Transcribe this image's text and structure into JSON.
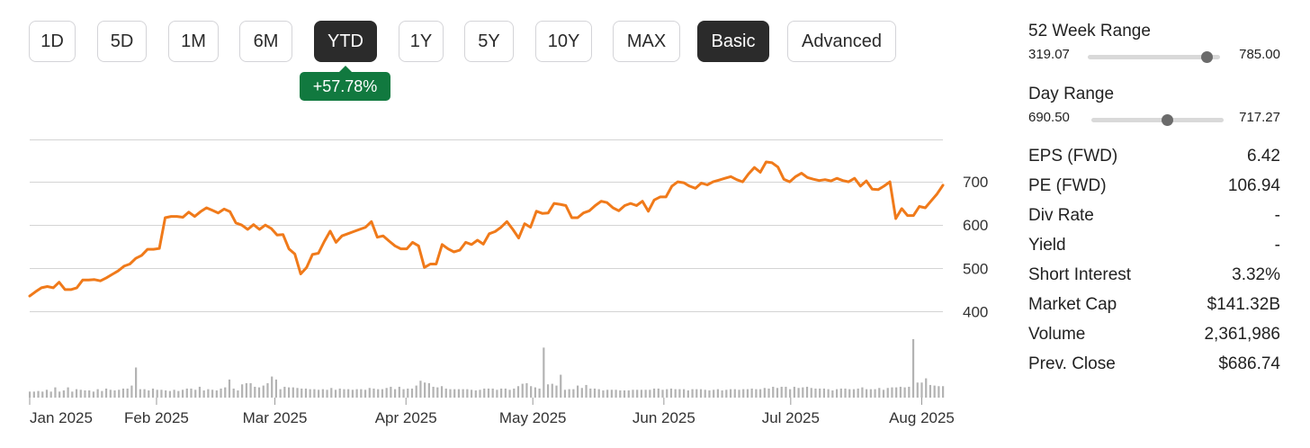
{
  "time_ranges": [
    {
      "label": "1D",
      "active": false
    },
    {
      "label": "5D",
      "active": false
    },
    {
      "label": "1M",
      "active": false
    },
    {
      "label": "6M",
      "active": false
    },
    {
      "label": "YTD",
      "active": true
    },
    {
      "label": "1Y",
      "active": false
    },
    {
      "label": "5Y",
      "active": false
    },
    {
      "label": "10Y",
      "active": false
    },
    {
      "label": "MAX",
      "active": false
    }
  ],
  "view_modes": [
    {
      "label": "Basic",
      "active": true
    },
    {
      "label": "Advanced",
      "active": false
    }
  ],
  "change_badge": "+57.78%",
  "colors": {
    "price_line": "#f07a1a",
    "badge": "#11793f",
    "active_button": "#2b2b2b",
    "volume_bar": "#b3b3b3",
    "grid": "#d4d4d4"
  },
  "stats": {
    "week52": {
      "title": "52 Week Range",
      "low": "319.07",
      "high": "785.00",
      "position": 0.9
    },
    "day": {
      "title": "Day Range",
      "low": "690.50",
      "high": "717.27",
      "position": 0.57
    },
    "rows": [
      {
        "label": "EPS (FWD)",
        "value": "6.42"
      },
      {
        "label": "PE (FWD)",
        "value": "106.94"
      },
      {
        "label": "Div Rate",
        "value": "-"
      },
      {
        "label": "Yield",
        "value": "-"
      },
      {
        "label": "Short Interest",
        "value": "3.32%"
      },
      {
        "label": "Market Cap",
        "value": "$141.32B"
      },
      {
        "label": "Volume",
        "value": "2,361,986"
      },
      {
        "label": "Prev. Close",
        "value": "$686.74"
      }
    ]
  },
  "chart_data": {
    "type": "line",
    "x_start": "2025-01-02",
    "x_end": "2025-08-06",
    "x_tick_labels": [
      "Jan 2025",
      "Feb 2025",
      "Mar 2025",
      "Apr 2025",
      "May 2025",
      "Jun 2025",
      "Jul 2025",
      "Aug 2025"
    ],
    "y_ticks": [
      400,
      500,
      600,
      700
    ],
    "ylim": [
      380,
      800
    ],
    "grid": true,
    "series": [
      {
        "values": [
          436,
          446,
          455,
          458,
          455,
          468,
          451,
          451,
          455,
          473,
          473,
          474,
          471,
          478,
          486,
          494,
          505,
          510,
          523,
          530,
          544,
          544,
          546,
          617,
          620,
          620,
          618,
          630,
          620,
          631,
          640,
          634,
          628,
          637,
          631,
          605,
          600,
          590,
          601,
          590,
          600,
          592,
          577,
          578,
          545,
          533,
          487,
          502,
          532,
          535,
          562,
          586,
          560,
          575,
          580,
          585,
          590,
          595,
          608,
          572,
          575,
          563,
          552,
          545,
          545,
          560,
          552,
          502,
          510,
          510,
          555,
          545,
          538,
          542,
          560,
          555,
          565,
          556,
          580,
          585,
          595,
          608,
          590,
          570,
          603,
          595,
          632,
          627,
          628,
          650,
          648,
          645,
          617,
          617,
          628,
          633,
          645,
          655,
          652,
          640,
          633,
          645,
          650,
          645,
          655,
          632,
          658,
          665,
          665,
          690,
          700,
          698,
          690,
          685,
          697,
          693,
          700,
          704,
          708,
          712,
          705,
          700,
          718,
          733,
          722,
          746,
          744,
          734,
          706,
          700,
          712,
          720,
          710,
          706,
          703,
          705,
          702,
          708,
          703,
          700,
          708,
          690,
          702,
          683,
          682,
          690,
          700,
          615,
          638,
          622,
          622,
          643,
          640,
          656,
          672,
          692
        ]
      }
    ],
    "volume": [
      {
        "values": [
          10,
          10,
          11,
          10,
          13,
          10,
          17,
          10,
          12,
          17,
          10,
          14,
          13,
          12,
          12,
          10,
          14,
          11,
          15,
          13,
          12,
          13,
          15,
          15,
          20,
          50,
          14,
          14,
          12,
          15,
          13,
          13,
          12,
          11,
          13,
          11,
          13,
          15,
          15,
          13,
          18,
          12,
          14,
          13,
          12,
          15,
          17,
          30,
          15,
          12,
          22,
          24,
          24,
          18,
          17,
          20,
          24,
          35,
          30,
          14,
          18,
          17,
          17,
          16,
          15,
          15,
          14,
          14,
          13,
          14,
          13,
          16,
          13,
          15,
          14,
          14,
          13,
          14,
          14,
          13,
          16,
          15,
          14,
          14,
          16,
          18,
          14,
          18,
          14,
          15,
          15,
          20,
          28,
          25,
          24,
          18,
          17,
          19,
          15,
          14,
          14,
          14,
          14,
          14,
          13,
          12,
          13,
          15,
          15,
          15,
          13,
          15,
          15,
          13,
          15,
          19,
          23,
          24,
          19,
          17,
          15,
          83,
          22,
          23,
          20,
          38,
          13,
          14,
          14,
          20,
          16,
          21,
          15,
          15,
          14,
          12,
          13,
          13,
          13,
          12,
          12,
          12,
          13,
          13,
          13,
          13,
          13,
          15,
          15,
          13,
          14,
          15,
          14,
          14,
          14,
          12,
          14,
          14,
          14,
          13,
          12,
          13,
          14,
          12,
          13,
          14,
          14,
          13,
          14,
          14,
          15,
          14,
          14,
          16,
          15,
          18,
          16,
          18,
          18,
          14,
          18,
          16,
          17,
          18,
          16,
          15,
          15,
          15,
          14,
          12,
          14,
          15,
          15,
          14,
          14,
          15,
          17,
          14,
          14,
          14,
          16,
          13,
          16,
          17,
          17,
          18,
          17,
          18,
          97,
          25,
          25,
          32,
          21,
          20,
          19,
          19
        ]
      }
    ]
  }
}
